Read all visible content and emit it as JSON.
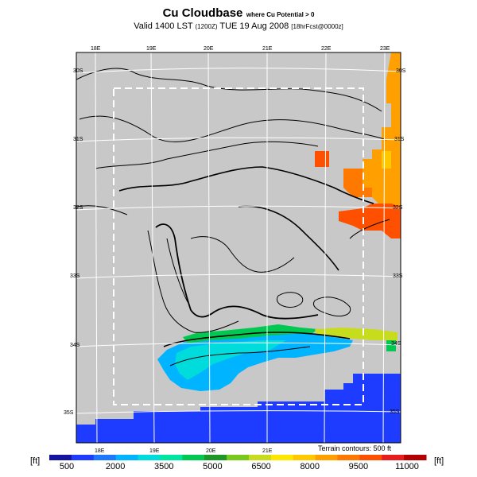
{
  "header": {
    "title": "Cu Cloudbase",
    "title_suffix": "where Cu Potential > 0",
    "valid": "Valid 1400 LST",
    "valid_code": "(1200Z)",
    "date": "TUE 19 Aug 2008",
    "forecast": "[18hrFcst@0000z]"
  },
  "map": {
    "lon_labels_top": [
      "18E",
      "19E",
      "20E",
      "21E",
      "22E",
      "23E"
    ],
    "lon_labels_bottom": [
      "18E",
      "19E",
      "20E",
      "21E"
    ],
    "lat_labels_left": [
      "30S",
      "31S",
      "32S",
      "33S",
      "34S",
      "35S"
    ],
    "lat_labels_right": [
      "30S",
      "31S",
      "32S",
      "33S",
      "34S",
      "35S"
    ],
    "terrain_note": "Terrain contours: 500 ft",
    "colors": {
      "land": "#c8c8c8",
      "ocean": "#1e3cff",
      "grid": "#ffffff"
    }
  },
  "colorbar": {
    "unit_left": "[ft]",
    "unit_right": "[ft]",
    "labels": [
      "500",
      "2000",
      "3500",
      "5000",
      "6500",
      "8000",
      "9500",
      "11000"
    ],
    "colors": [
      "#1414a0",
      "#1e3cff",
      "#1e78ff",
      "#00b4ff",
      "#00dcdc",
      "#00e6a0",
      "#00c850",
      "#1e9628",
      "#78c81e",
      "#c8dc1e",
      "#ffe600",
      "#ffc800",
      "#ffa000",
      "#ff7800",
      "#ff5000",
      "#e61e1e",
      "#b40000"
    ]
  }
}
